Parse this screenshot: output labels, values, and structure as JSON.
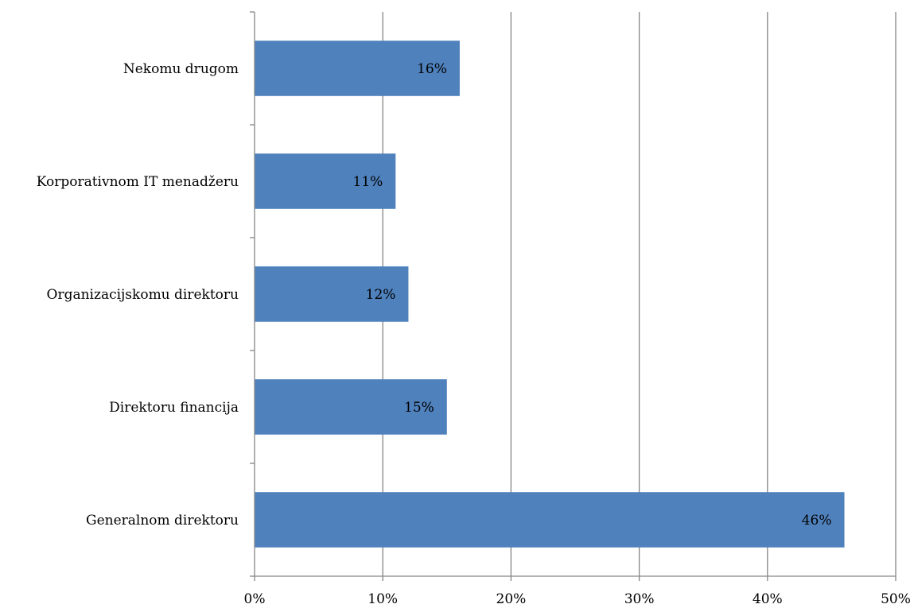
{
  "chart_data": {
    "type": "bar",
    "orientation": "horizontal",
    "categories": [
      "Generalnom direktoru",
      "Direktoru financija",
      "Organizacijskomu direktoru",
      "Korporativnom IT menadžeru",
      "Nekomu drugom"
    ],
    "series": [
      {
        "values": [
          46,
          15,
          12,
          11,
          16
        ]
      }
    ],
    "data_labels": [
      "46%",
      "15%",
      "12%",
      "11%",
      "16%"
    ],
    "x_ticks": [
      "0%",
      "10%",
      "20%",
      "30%",
      "40%",
      "50%"
    ],
    "xlim": [
      0,
      50
    ],
    "x_unit": "%",
    "title": "",
    "xlabel": "",
    "ylabel": "",
    "grid": "vertical",
    "legend": "none",
    "bar_color": "#4f81bd",
    "grid_color": "#868686"
  }
}
